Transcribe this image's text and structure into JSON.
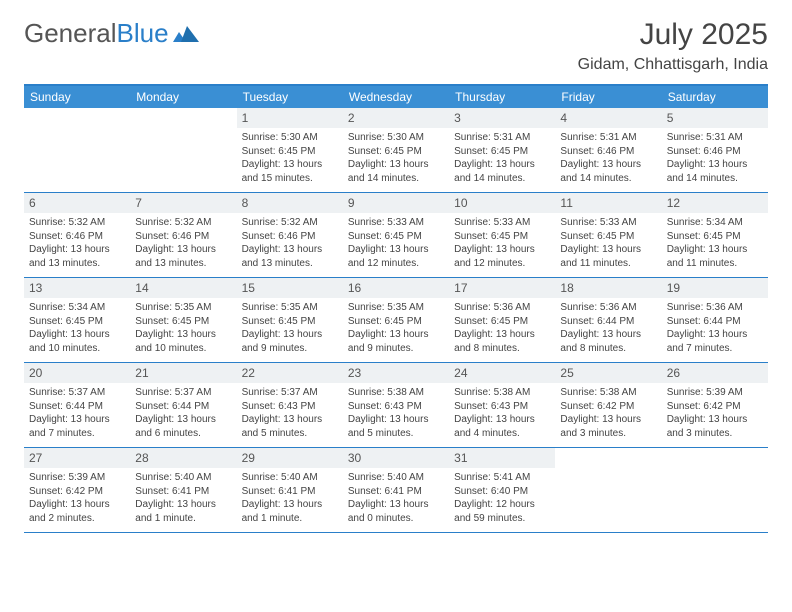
{
  "brand": {
    "part1": "General",
    "part2": "Blue"
  },
  "title": "July 2025",
  "location": "Gidam, Chhattisgarh, India",
  "colors": {
    "header_bar": "#3a8fd4",
    "accent_border": "#2a7fc9",
    "daynum_band": "#eef1f3",
    "text": "#333333",
    "logo_gray": "#555555"
  },
  "days_of_week": [
    "Sunday",
    "Monday",
    "Tuesday",
    "Wednesday",
    "Thursday",
    "Friday",
    "Saturday"
  ],
  "weeks": [
    [
      {
        "n": "",
        "sr": "",
        "ss": "",
        "dl": ""
      },
      {
        "n": "",
        "sr": "",
        "ss": "",
        "dl": ""
      },
      {
        "n": "1",
        "sr": "Sunrise: 5:30 AM",
        "ss": "Sunset: 6:45 PM",
        "dl": "Daylight: 13 hours and 15 minutes."
      },
      {
        "n": "2",
        "sr": "Sunrise: 5:30 AM",
        "ss": "Sunset: 6:45 PM",
        "dl": "Daylight: 13 hours and 14 minutes."
      },
      {
        "n": "3",
        "sr": "Sunrise: 5:31 AM",
        "ss": "Sunset: 6:45 PM",
        "dl": "Daylight: 13 hours and 14 minutes."
      },
      {
        "n": "4",
        "sr": "Sunrise: 5:31 AM",
        "ss": "Sunset: 6:46 PM",
        "dl": "Daylight: 13 hours and 14 minutes."
      },
      {
        "n": "5",
        "sr": "Sunrise: 5:31 AM",
        "ss": "Sunset: 6:46 PM",
        "dl": "Daylight: 13 hours and 14 minutes."
      }
    ],
    [
      {
        "n": "6",
        "sr": "Sunrise: 5:32 AM",
        "ss": "Sunset: 6:46 PM",
        "dl": "Daylight: 13 hours and 13 minutes."
      },
      {
        "n": "7",
        "sr": "Sunrise: 5:32 AM",
        "ss": "Sunset: 6:46 PM",
        "dl": "Daylight: 13 hours and 13 minutes."
      },
      {
        "n": "8",
        "sr": "Sunrise: 5:32 AM",
        "ss": "Sunset: 6:46 PM",
        "dl": "Daylight: 13 hours and 13 minutes."
      },
      {
        "n": "9",
        "sr": "Sunrise: 5:33 AM",
        "ss": "Sunset: 6:45 PM",
        "dl": "Daylight: 13 hours and 12 minutes."
      },
      {
        "n": "10",
        "sr": "Sunrise: 5:33 AM",
        "ss": "Sunset: 6:45 PM",
        "dl": "Daylight: 13 hours and 12 minutes."
      },
      {
        "n": "11",
        "sr": "Sunrise: 5:33 AM",
        "ss": "Sunset: 6:45 PM",
        "dl": "Daylight: 13 hours and 11 minutes."
      },
      {
        "n": "12",
        "sr": "Sunrise: 5:34 AM",
        "ss": "Sunset: 6:45 PM",
        "dl": "Daylight: 13 hours and 11 minutes."
      }
    ],
    [
      {
        "n": "13",
        "sr": "Sunrise: 5:34 AM",
        "ss": "Sunset: 6:45 PM",
        "dl": "Daylight: 13 hours and 10 minutes."
      },
      {
        "n": "14",
        "sr": "Sunrise: 5:35 AM",
        "ss": "Sunset: 6:45 PM",
        "dl": "Daylight: 13 hours and 10 minutes."
      },
      {
        "n": "15",
        "sr": "Sunrise: 5:35 AM",
        "ss": "Sunset: 6:45 PM",
        "dl": "Daylight: 13 hours and 9 minutes."
      },
      {
        "n": "16",
        "sr": "Sunrise: 5:35 AM",
        "ss": "Sunset: 6:45 PM",
        "dl": "Daylight: 13 hours and 9 minutes."
      },
      {
        "n": "17",
        "sr": "Sunrise: 5:36 AM",
        "ss": "Sunset: 6:45 PM",
        "dl": "Daylight: 13 hours and 8 minutes."
      },
      {
        "n": "18",
        "sr": "Sunrise: 5:36 AM",
        "ss": "Sunset: 6:44 PM",
        "dl": "Daylight: 13 hours and 8 minutes."
      },
      {
        "n": "19",
        "sr": "Sunrise: 5:36 AM",
        "ss": "Sunset: 6:44 PM",
        "dl": "Daylight: 13 hours and 7 minutes."
      }
    ],
    [
      {
        "n": "20",
        "sr": "Sunrise: 5:37 AM",
        "ss": "Sunset: 6:44 PM",
        "dl": "Daylight: 13 hours and 7 minutes."
      },
      {
        "n": "21",
        "sr": "Sunrise: 5:37 AM",
        "ss": "Sunset: 6:44 PM",
        "dl": "Daylight: 13 hours and 6 minutes."
      },
      {
        "n": "22",
        "sr": "Sunrise: 5:37 AM",
        "ss": "Sunset: 6:43 PM",
        "dl": "Daylight: 13 hours and 5 minutes."
      },
      {
        "n": "23",
        "sr": "Sunrise: 5:38 AM",
        "ss": "Sunset: 6:43 PM",
        "dl": "Daylight: 13 hours and 5 minutes."
      },
      {
        "n": "24",
        "sr": "Sunrise: 5:38 AM",
        "ss": "Sunset: 6:43 PM",
        "dl": "Daylight: 13 hours and 4 minutes."
      },
      {
        "n": "25",
        "sr": "Sunrise: 5:38 AM",
        "ss": "Sunset: 6:42 PM",
        "dl": "Daylight: 13 hours and 3 minutes."
      },
      {
        "n": "26",
        "sr": "Sunrise: 5:39 AM",
        "ss": "Sunset: 6:42 PM",
        "dl": "Daylight: 13 hours and 3 minutes."
      }
    ],
    [
      {
        "n": "27",
        "sr": "Sunrise: 5:39 AM",
        "ss": "Sunset: 6:42 PM",
        "dl": "Daylight: 13 hours and 2 minutes."
      },
      {
        "n": "28",
        "sr": "Sunrise: 5:40 AM",
        "ss": "Sunset: 6:41 PM",
        "dl": "Daylight: 13 hours and 1 minute."
      },
      {
        "n": "29",
        "sr": "Sunrise: 5:40 AM",
        "ss": "Sunset: 6:41 PM",
        "dl": "Daylight: 13 hours and 1 minute."
      },
      {
        "n": "30",
        "sr": "Sunrise: 5:40 AM",
        "ss": "Sunset: 6:41 PM",
        "dl": "Daylight: 13 hours and 0 minutes."
      },
      {
        "n": "31",
        "sr": "Sunrise: 5:41 AM",
        "ss": "Sunset: 6:40 PM",
        "dl": "Daylight: 12 hours and 59 minutes."
      },
      {
        "n": "",
        "sr": "",
        "ss": "",
        "dl": ""
      },
      {
        "n": "",
        "sr": "",
        "ss": "",
        "dl": ""
      }
    ]
  ]
}
